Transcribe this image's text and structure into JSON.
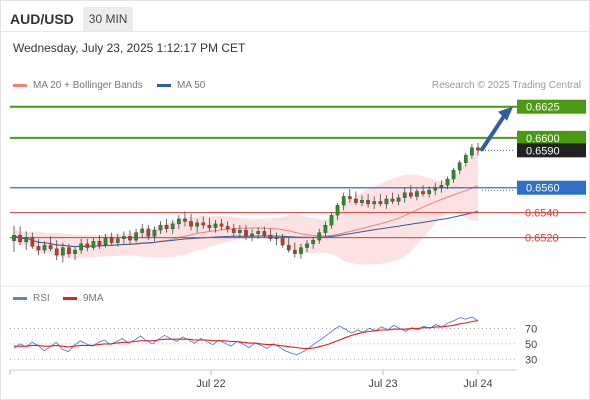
{
  "header": {
    "symbol": "AUD/USD",
    "timeframe": "30 MIN",
    "datetime": "Wednesday, July 23, 2025 1:12:17 PM CET"
  },
  "legend": {
    "ma20_label": "MA 20 + Bollinger Bands",
    "ma20_color": "#f08080",
    "ma50_label": "MA 50",
    "ma50_color": "#2f5e9e",
    "credit": "Research © 2025 Trading Central"
  },
  "rsi_legend": {
    "rsi_label": "RSI",
    "rsi_color": "#5b7fd6",
    "ma9_label": "9MA",
    "ma9_color": "#e0201b"
  },
  "chart_data": [
    {
      "type": "candlestick",
      "y_range": [
        0.649,
        0.664
      ],
      "x_ticks": [
        "Jul 22",
        "Jul 23",
        "Jul 24"
      ],
      "current_price": 0.659,
      "current_price_label": "0.6590",
      "levels": [
        {
          "label": "0.6625",
          "value": 0.6625,
          "kind": "target",
          "color": "#4a9a12"
        },
        {
          "label": "0.6600",
          "value": 0.66,
          "kind": "target",
          "color": "#4a9a12"
        },
        {
          "label": "0.6560",
          "value": 0.656,
          "kind": "pivot",
          "color": "#2f6fc8"
        },
        {
          "label": "0.6540",
          "value": 0.654,
          "kind": "support",
          "color": "#d23b3b"
        },
        {
          "label": "0.6520",
          "value": 0.652,
          "kind": "support",
          "color": "#d23b3b"
        }
      ],
      "arrow": {
        "from": 0.659,
        "to": 0.6625,
        "color": "#2f5e9e"
      },
      "candles": [
        {
          "o": 0.65175,
          "h": 0.65295,
          "l": 0.65085,
          "c": 0.6522
        },
        {
          "o": 0.6522,
          "h": 0.6529,
          "l": 0.6514,
          "c": 0.65165
        },
        {
          "o": 0.65165,
          "h": 0.6525,
          "l": 0.651,
          "c": 0.652
        },
        {
          "o": 0.652,
          "h": 0.6524,
          "l": 0.6511,
          "c": 0.6513
        },
        {
          "o": 0.6513,
          "h": 0.6519,
          "l": 0.6506,
          "c": 0.651
        },
        {
          "o": 0.651,
          "h": 0.6517,
          "l": 0.6507,
          "c": 0.6514
        },
        {
          "o": 0.6514,
          "h": 0.6521,
          "l": 0.6509,
          "c": 0.6511
        },
        {
          "o": 0.6511,
          "h": 0.6518,
          "l": 0.6502,
          "c": 0.6506
        },
        {
          "o": 0.6506,
          "h": 0.6516,
          "l": 0.65,
          "c": 0.6512
        },
        {
          "o": 0.6512,
          "h": 0.6515,
          "l": 0.6504,
          "c": 0.6507
        },
        {
          "o": 0.6507,
          "h": 0.6513,
          "l": 0.6502,
          "c": 0.651
        },
        {
          "o": 0.651,
          "h": 0.6519,
          "l": 0.6507,
          "c": 0.6515
        },
        {
          "o": 0.6515,
          "h": 0.6519,
          "l": 0.6509,
          "c": 0.6512
        },
        {
          "o": 0.6512,
          "h": 0.652,
          "l": 0.651,
          "c": 0.6517
        },
        {
          "o": 0.6517,
          "h": 0.6522,
          "l": 0.6511,
          "c": 0.6514
        },
        {
          "o": 0.6514,
          "h": 0.6523,
          "l": 0.6512,
          "c": 0.652
        },
        {
          "o": 0.652,
          "h": 0.6524,
          "l": 0.6514,
          "c": 0.6516
        },
        {
          "o": 0.6516,
          "h": 0.6523,
          "l": 0.6513,
          "c": 0.6519
        },
        {
          "o": 0.6519,
          "h": 0.6525,
          "l": 0.6515,
          "c": 0.6521
        },
        {
          "o": 0.6521,
          "h": 0.6526,
          "l": 0.6515,
          "c": 0.6518
        },
        {
          "o": 0.6518,
          "h": 0.6527,
          "l": 0.6516,
          "c": 0.6524
        },
        {
          "o": 0.6524,
          "h": 0.6531,
          "l": 0.652,
          "c": 0.6527
        },
        {
          "o": 0.6527,
          "h": 0.653,
          "l": 0.6518,
          "c": 0.6521
        },
        {
          "o": 0.6521,
          "h": 0.6529,
          "l": 0.6517,
          "c": 0.6526
        },
        {
          "o": 0.6526,
          "h": 0.6533,
          "l": 0.6523,
          "c": 0.653
        },
        {
          "o": 0.653,
          "h": 0.6535,
          "l": 0.6524,
          "c": 0.6527
        },
        {
          "o": 0.6527,
          "h": 0.6534,
          "l": 0.6523,
          "c": 0.6531
        },
        {
          "o": 0.6531,
          "h": 0.6538,
          "l": 0.6527,
          "c": 0.6535
        },
        {
          "o": 0.6535,
          "h": 0.6541,
          "l": 0.6529,
          "c": 0.6533
        },
        {
          "o": 0.6533,
          "h": 0.6539,
          "l": 0.6526,
          "c": 0.6529
        },
        {
          "o": 0.6529,
          "h": 0.6535,
          "l": 0.6524,
          "c": 0.6532
        },
        {
          "o": 0.6532,
          "h": 0.6537,
          "l": 0.6527,
          "c": 0.653
        },
        {
          "o": 0.653,
          "h": 0.6536,
          "l": 0.6525,
          "c": 0.6528
        },
        {
          "o": 0.6528,
          "h": 0.6534,
          "l": 0.6524,
          "c": 0.6531
        },
        {
          "o": 0.6531,
          "h": 0.6535,
          "l": 0.6526,
          "c": 0.6529
        },
        {
          "o": 0.6529,
          "h": 0.6533,
          "l": 0.6524,
          "c": 0.6527
        },
        {
          "o": 0.6527,
          "h": 0.6531,
          "l": 0.6521,
          "c": 0.6524
        },
        {
          "o": 0.6524,
          "h": 0.653,
          "l": 0.652,
          "c": 0.6526
        },
        {
          "o": 0.6526,
          "h": 0.653,
          "l": 0.6518,
          "c": 0.6521
        },
        {
          "o": 0.6521,
          "h": 0.6527,
          "l": 0.6517,
          "c": 0.6523
        },
        {
          "o": 0.6523,
          "h": 0.6528,
          "l": 0.6519,
          "c": 0.6525
        },
        {
          "o": 0.6525,
          "h": 0.6529,
          "l": 0.652,
          "c": 0.6522
        },
        {
          "o": 0.6522,
          "h": 0.6527,
          "l": 0.6517,
          "c": 0.6519
        },
        {
          "o": 0.6519,
          "h": 0.6524,
          "l": 0.6514,
          "c": 0.652
        },
        {
          "o": 0.652,
          "h": 0.6523,
          "l": 0.6512,
          "c": 0.6514
        },
        {
          "o": 0.6514,
          "h": 0.652,
          "l": 0.6508,
          "c": 0.651
        },
        {
          "o": 0.651,
          "h": 0.6516,
          "l": 0.6504,
          "c": 0.6507
        },
        {
          "o": 0.6507,
          "h": 0.6515,
          "l": 0.6503,
          "c": 0.6512
        },
        {
          "o": 0.6512,
          "h": 0.6518,
          "l": 0.6508,
          "c": 0.6515
        },
        {
          "o": 0.6515,
          "h": 0.652,
          "l": 0.6511,
          "c": 0.6518
        },
        {
          "o": 0.6518,
          "h": 0.6527,
          "l": 0.6515,
          "c": 0.6524
        },
        {
          "o": 0.6524,
          "h": 0.6533,
          "l": 0.6521,
          "c": 0.653
        },
        {
          "o": 0.653,
          "h": 0.654,
          "l": 0.6527,
          "c": 0.6538
        },
        {
          "o": 0.6538,
          "h": 0.6548,
          "l": 0.6534,
          "c": 0.6546
        },
        {
          "o": 0.6546,
          "h": 0.6556,
          "l": 0.6542,
          "c": 0.6553
        },
        {
          "o": 0.6553,
          "h": 0.6559,
          "l": 0.6548,
          "c": 0.6551
        },
        {
          "o": 0.6551,
          "h": 0.6557,
          "l": 0.6546,
          "c": 0.6548
        },
        {
          "o": 0.6548,
          "h": 0.6554,
          "l": 0.6545,
          "c": 0.655
        },
        {
          "o": 0.655,
          "h": 0.6555,
          "l": 0.6544,
          "c": 0.6547
        },
        {
          "o": 0.6547,
          "h": 0.6553,
          "l": 0.6543,
          "c": 0.6549
        },
        {
          "o": 0.6549,
          "h": 0.6555,
          "l": 0.6545,
          "c": 0.6547
        },
        {
          "o": 0.6547,
          "h": 0.6554,
          "l": 0.6543,
          "c": 0.6551
        },
        {
          "o": 0.6551,
          "h": 0.6556,
          "l": 0.6547,
          "c": 0.6549
        },
        {
          "o": 0.6549,
          "h": 0.6555,
          "l": 0.6546,
          "c": 0.6552
        },
        {
          "o": 0.6552,
          "h": 0.656,
          "l": 0.6548,
          "c": 0.6556
        },
        {
          "o": 0.6556,
          "h": 0.6562,
          "l": 0.6551,
          "c": 0.6553
        },
        {
          "o": 0.6553,
          "h": 0.6559,
          "l": 0.655,
          "c": 0.6557
        },
        {
          "o": 0.6557,
          "h": 0.6562,
          "l": 0.6553,
          "c": 0.6555
        },
        {
          "o": 0.6555,
          "h": 0.6561,
          "l": 0.6552,
          "c": 0.6558
        },
        {
          "o": 0.6558,
          "h": 0.6564,
          "l": 0.6554,
          "c": 0.656
        },
        {
          "o": 0.656,
          "h": 0.6566,
          "l": 0.6556,
          "c": 0.6562
        },
        {
          "o": 0.6562,
          "h": 0.6569,
          "l": 0.6559,
          "c": 0.6567
        },
        {
          "o": 0.6567,
          "h": 0.6576,
          "l": 0.6564,
          "c": 0.6574
        },
        {
          "o": 0.6574,
          "h": 0.6582,
          "l": 0.6571,
          "c": 0.658
        },
        {
          "o": 0.658,
          "h": 0.6588,
          "l": 0.6577,
          "c": 0.6586
        },
        {
          "o": 0.6586,
          "h": 0.6595,
          "l": 0.6583,
          "c": 0.6592
        },
        {
          "o": 0.6592,
          "h": 0.6596,
          "l": 0.6586,
          "c": 0.659
        }
      ]
    },
    {
      "type": "line",
      "y_ticks": [
        30,
        50,
        70
      ],
      "y_range": [
        20,
        90
      ],
      "series": [
        {
          "name": "RSI",
          "values": [
            44,
            50,
            46,
            52,
            48,
            41,
            46,
            52,
            43,
            40,
            48,
            54,
            50,
            47,
            52,
            55,
            49,
            53,
            57,
            51,
            55,
            60,
            54,
            50,
            56,
            61,
            57,
            53,
            59,
            55,
            51,
            57,
            53,
            49,
            55,
            51,
            47,
            53,
            50,
            45,
            51,
            48,
            44,
            50,
            46,
            41,
            38,
            36,
            40,
            45,
            51,
            56,
            62,
            68,
            73,
            69,
            64,
            68,
            65,
            70,
            67,
            72,
            68,
            74,
            70,
            66,
            71,
            68,
            73,
            70,
            75,
            72,
            77,
            80,
            84,
            82,
            85,
            80
          ]
        },
        {
          "name": "9MA",
          "values": [
            47,
            47,
            47,
            48,
            48,
            47,
            47,
            48,
            47,
            46,
            47,
            48,
            48,
            48,
            49,
            50,
            50,
            51,
            52,
            52,
            53,
            54,
            54,
            54,
            55,
            56,
            56,
            56,
            56,
            56,
            55,
            55,
            55,
            54,
            54,
            54,
            53,
            53,
            52,
            51,
            51,
            50,
            49,
            49,
            48,
            47,
            46,
            45,
            44,
            44,
            45,
            47,
            49,
            52,
            55,
            58,
            61,
            63,
            65,
            66,
            67,
            68,
            68,
            69,
            69,
            69,
            70,
            70,
            71,
            71,
            72,
            72,
            73,
            74,
            76,
            77,
            79,
            80
          ]
        }
      ]
    }
  ]
}
